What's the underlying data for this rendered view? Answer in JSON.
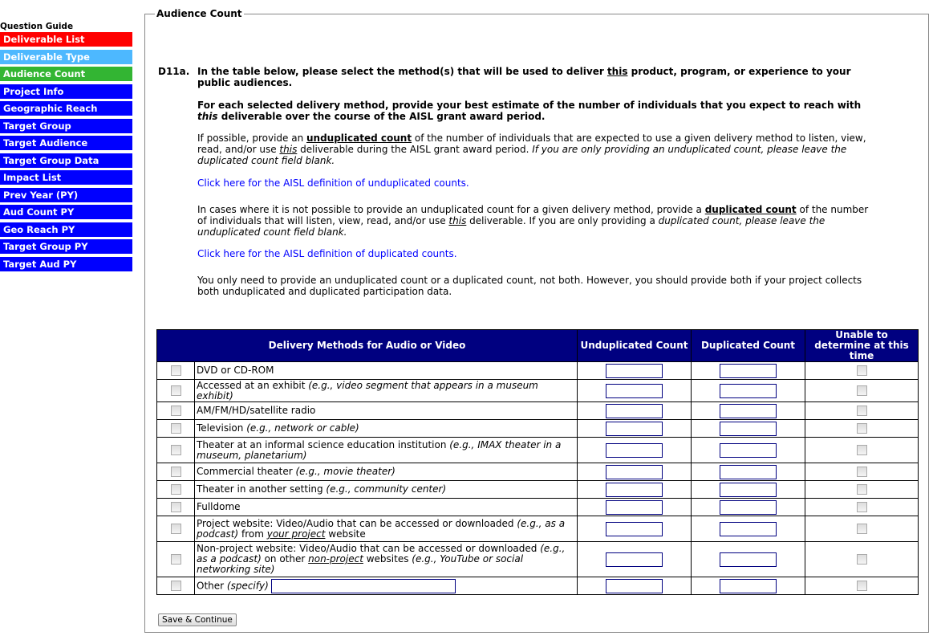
{
  "sidebar": {
    "title": "Question Guide",
    "items": [
      {
        "label": "Deliverable List",
        "color": "#ff0000"
      },
      {
        "label": "Deliverable Type",
        "color": "#4db8ff"
      },
      {
        "label": "Audience Count",
        "color": "#33b533"
      },
      {
        "label": "Project Info",
        "color": "#0000ff"
      },
      {
        "label": "Geographic Reach",
        "color": "#0000ff"
      },
      {
        "label": "Target Group",
        "color": "#0000ff"
      },
      {
        "label": "Target Audience",
        "color": "#0000ff"
      },
      {
        "label": "Target Group Data",
        "color": "#0000ff"
      },
      {
        "label": "Impact List",
        "color": "#0000ff"
      },
      {
        "label": "Prev Year (PY)",
        "color": "#0000ff"
      },
      {
        "label": "Aud Count PY",
        "color": "#0000ff"
      },
      {
        "label": "Geo Reach PY",
        "color": "#0000ff"
      },
      {
        "label": "Target Group PY",
        "color": "#0000ff"
      },
      {
        "label": "Target Aud PY",
        "color": "#0000ff"
      }
    ]
  },
  "section": {
    "legend": "Audience Count",
    "qnum": "D11a.",
    "paragraphs": [
      {
        "bold": true,
        "parts": [
          [
            "In the table below, please select the method(s) that will be used to deliver ",
            ""
          ],
          [
            "this",
            "u"
          ],
          [
            " product, program, or experience to your public audiences.",
            ""
          ]
        ]
      },
      {
        "bold": true,
        "parts": [
          [
            "For each selected delivery method, provide your best estimate of the number of individuals that you expect to reach with ",
            ""
          ],
          [
            "this",
            "i"
          ],
          [
            " deliverable over the course of the AISL grant award period.",
            ""
          ]
        ]
      },
      {
        "bold": false,
        "parts": [
          [
            "If possible, provide an ",
            ""
          ],
          [
            "unduplicated count",
            "bu"
          ],
          [
            " of the number of individuals that are expected to use a given delivery method to listen, view, read, and/or use ",
            ""
          ],
          [
            "this",
            "iu"
          ],
          [
            " deliverable during the AISL grant award period. ",
            ""
          ],
          [
            "If you are only providing an unduplicated count, please leave the duplicated count field blank.",
            "i"
          ]
        ]
      },
      {
        "link": "Click here for the AISL definition of unduplicated counts."
      },
      {
        "bold": false,
        "parts": [
          [
            "In cases where it is not possible to provide an unduplicated count for a given delivery method, provide a ",
            ""
          ],
          [
            "duplicated count",
            "bu"
          ],
          [
            " of the number of individuals that will listen, view, read, and/or use ",
            ""
          ],
          [
            "this",
            "iu"
          ],
          [
            " deliverable. If you are only providing a ",
            ""
          ],
          [
            "duplicated count, please leave the unduplicated count field blank.",
            "i"
          ]
        ]
      },
      {
        "link": "Click here for the AISL definition of duplicated counts."
      },
      {
        "bold": false,
        "parts": [
          [
            "You only need to provide an unduplicated count or a duplicated count, not both. However, you should provide both if your project collects both unduplicated and duplicated participation data.",
            ""
          ]
        ]
      }
    ]
  },
  "table": {
    "headers": [
      "Delivery Methods for Audio or Video",
      "Unduplicated Count",
      "Duplicated Count",
      "Unable to determine at this time"
    ],
    "rows": [
      {
        "h": 22,
        "parts": [
          [
            "DVD or CD-ROM",
            ""
          ]
        ]
      },
      {
        "h": 28,
        "parts": [
          [
            "Accessed at an exhibit ",
            ""
          ],
          [
            "(e.g., video segment that appears in a museum exhibit)",
            "i"
          ]
        ]
      },
      {
        "h": 22,
        "parts": [
          [
            "AM/FM/HD/satellite radio",
            ""
          ]
        ]
      },
      {
        "h": 22,
        "parts": [
          [
            "Television ",
            ""
          ],
          [
            "(e.g., network or cable)",
            "i"
          ]
        ]
      },
      {
        "h": 32,
        "parts": [
          [
            "Theater at an informal science education institution ",
            ""
          ],
          [
            "(e.g., IMAX theater in a museum, planetarium)",
            "i"
          ]
        ]
      },
      {
        "h": 22,
        "parts": [
          [
            "Commercial theater ",
            ""
          ],
          [
            "(e.g., movie theater)",
            "i"
          ]
        ]
      },
      {
        "h": 22,
        "parts": [
          [
            "Theater in another setting ",
            ""
          ],
          [
            "(e.g., community center)",
            "i"
          ]
        ]
      },
      {
        "h": 22,
        "parts": [
          [
            "Fulldome",
            ""
          ]
        ]
      },
      {
        "h": 32,
        "parts": [
          [
            "Project website: Video/Audio that can be accessed or downloaded ",
            ""
          ],
          [
            "(e.g., as a podcast)",
            "i"
          ],
          [
            " from ",
            ""
          ],
          [
            "your project",
            "iu"
          ],
          [
            " website",
            ""
          ]
        ]
      },
      {
        "h": 44,
        "parts": [
          [
            "Non-project website: Video/Audio that can be accessed or downloaded ",
            ""
          ],
          [
            "(e.g., as a podcast)",
            "i"
          ],
          [
            " on other ",
            ""
          ],
          [
            "non-project",
            "iu"
          ],
          [
            " websites ",
            ""
          ],
          [
            "(e.g., YouTube or social networking site)",
            "i"
          ]
        ]
      },
      {
        "h": 22,
        "other": true,
        "parts": [
          [
            "Other ",
            ""
          ],
          [
            "(specify)",
            "i"
          ]
        ]
      }
    ]
  },
  "save_label": "Save & Continue"
}
